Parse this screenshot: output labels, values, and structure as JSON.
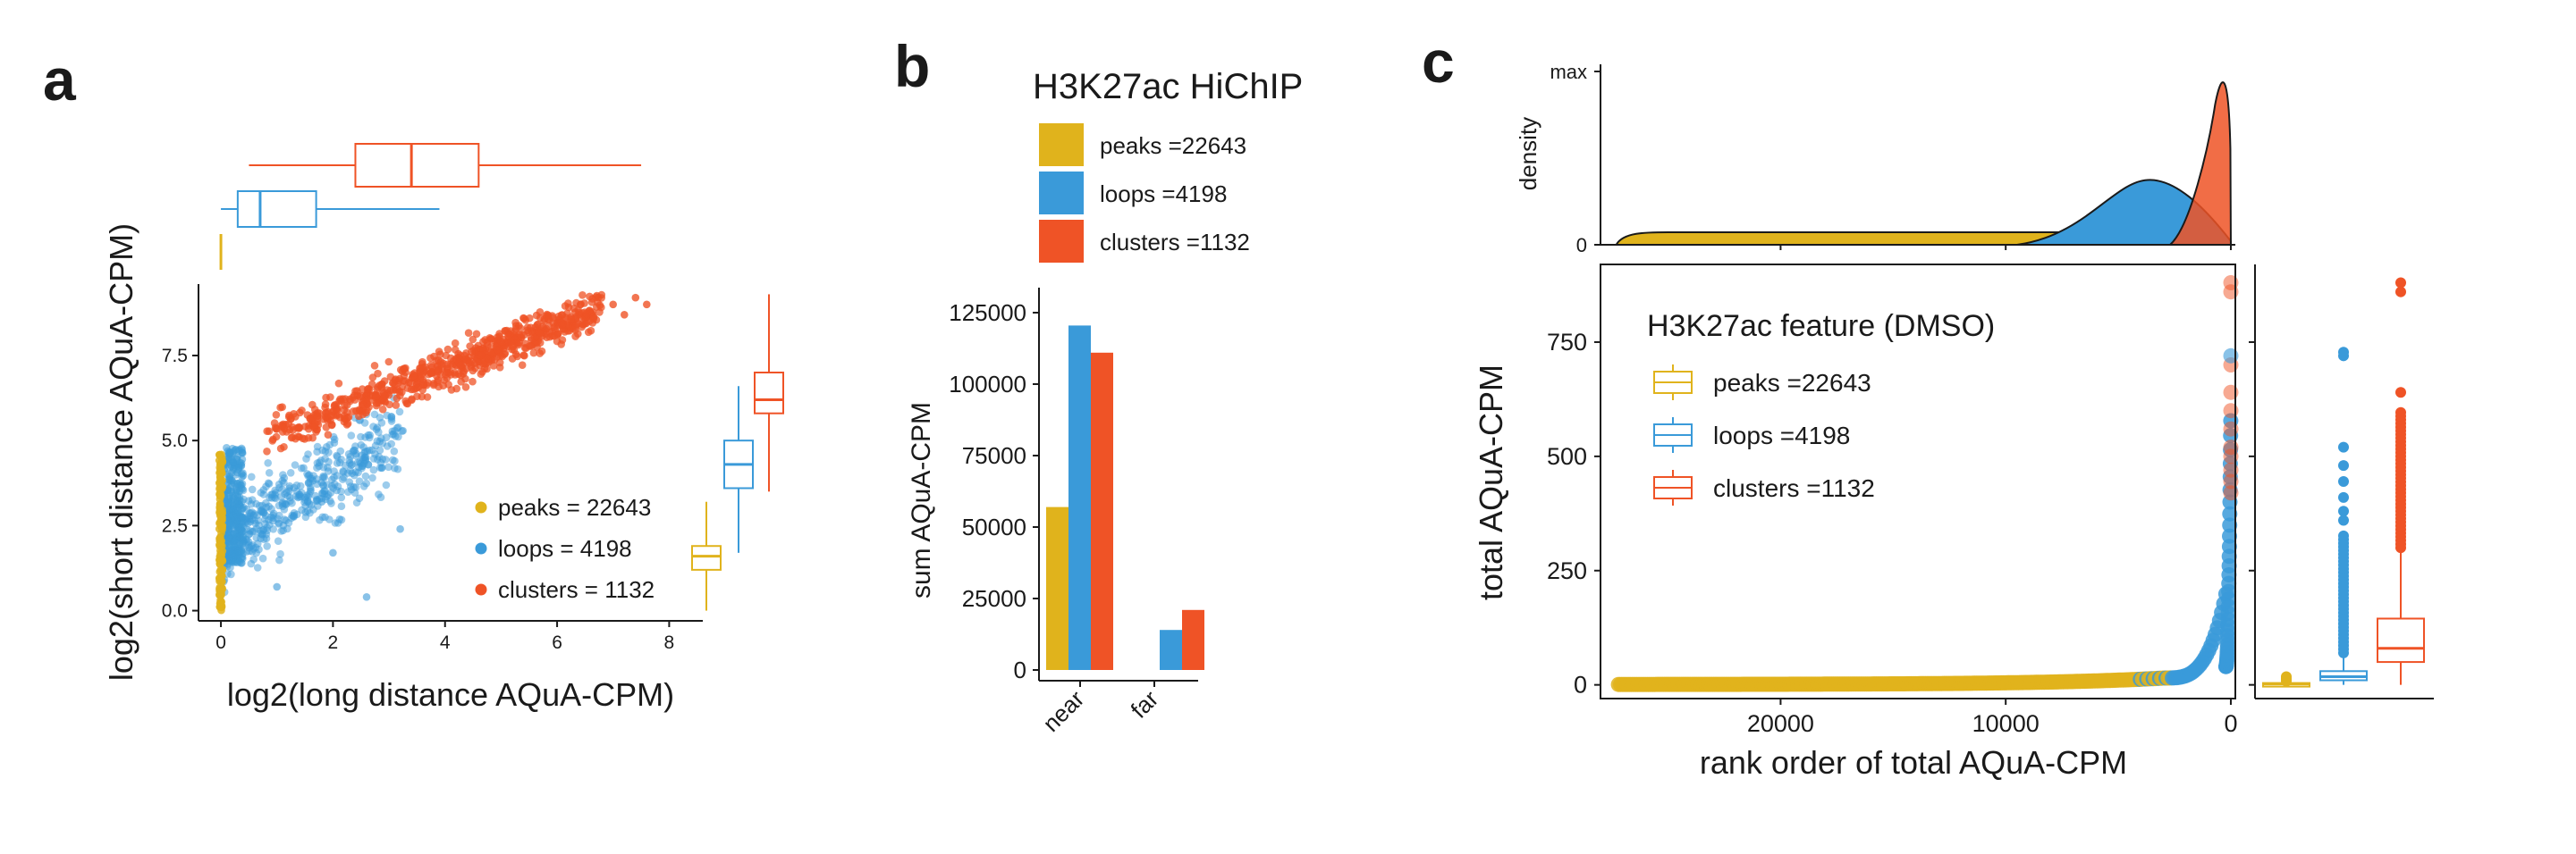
{
  "colors": {
    "peaks": "#e0b31c",
    "loops": "#3a9ad9",
    "clusters": "#ef5326",
    "axis": "#1a1a1a"
  },
  "chart_data": [
    {
      "panel": "a",
      "type": "scatter",
      "panel_label": "a",
      "xlabel": "log2(long distance AQuA-CPM)",
      "ylabel": "log2(short distance AQuA-CPM)",
      "xlim": [
        -0.4,
        8.6
      ],
      "ylim": [
        -0.3,
        9.6
      ],
      "x_ticks": [
        "0",
        "2",
        "4",
        "6",
        "8"
      ],
      "y_ticks": [
        "0.0",
        "2.5",
        "5.0",
        "7.5"
      ],
      "legend": [
        "peaks = 22643",
        "loops = 4198",
        "clusters = 1132"
      ],
      "marginal_boxplots_x": [
        {
          "series": "peaks",
          "min": 0,
          "q1": 0,
          "median": 0,
          "q3": 0,
          "max": 0
        },
        {
          "series": "loops",
          "min": 0,
          "q1": 0.3,
          "median": 0.7,
          "q3": 1.7,
          "max": 3.9
        },
        {
          "series": "clusters",
          "min": 0.5,
          "q1": 2.4,
          "median": 3.4,
          "q3": 4.6,
          "max": 7.5
        }
      ],
      "marginal_boxplots_y": [
        {
          "series": "peaks",
          "min": 0,
          "q1": 1.2,
          "median": 1.6,
          "q3": 1.9,
          "max": 3.2
        },
        {
          "series": "loops",
          "min": 1.7,
          "q1": 3.6,
          "median": 4.3,
          "q3": 5.0,
          "max": 6.6
        },
        {
          "series": "clusters",
          "min": 3.5,
          "q1": 5.8,
          "median": 6.2,
          "q3": 7.0,
          "max": 9.3
        }
      ]
    },
    {
      "panel": "b",
      "type": "bar",
      "panel_label": "b",
      "title": "H3K27ac HiChIP",
      "categories": [
        "near",
        "far"
      ],
      "series": [
        {
          "name": "peaks =22643",
          "key": "peaks",
          "values": [
            57000,
            0
          ]
        },
        {
          "name": "loops =4198",
          "key": "loops",
          "values": [
            120500,
            14000
          ]
        },
        {
          "name": "clusters =1132",
          "key": "clusters",
          "values": [
            111000,
            21000
          ]
        }
      ],
      "ylabel": "sum AQuA-CPM",
      "ylim": [
        0,
        130000
      ],
      "y_ticks": [
        "0",
        "25000",
        "50000",
        "75000",
        "100000",
        "125000"
      ]
    },
    {
      "panel": "c",
      "type": "scatter",
      "panel_label": "c",
      "title": "H3K27ac feature (DMSO)",
      "xlabel": "rank order of total AQuA-CPM",
      "ylabel": "total AQuA-CPM",
      "x_reversed": true,
      "xlim": [
        28000,
        -200
      ],
      "ylim": [
        -30,
        920
      ],
      "x_ticks": [
        "20000",
        "10000",
        "0"
      ],
      "y_ticks": [
        "0",
        "250",
        "500",
        "750"
      ],
      "density_ylabel": "density",
      "density_y_ticks": [
        "0",
        "max"
      ],
      "legend": [
        "peaks =22643",
        "loops =4198",
        "clusters =1132"
      ],
      "boxplots": [
        {
          "series": "peaks",
          "q1": 1,
          "median": 2,
          "q3": 4,
          "whisker_max": 8
        },
        {
          "series": "loops",
          "q1": 10,
          "median": 18,
          "q3": 30,
          "whisker_max": 60
        },
        {
          "series": "clusters",
          "q1": 50,
          "median": 80,
          "q3": 145,
          "whisker_max": 290
        }
      ]
    }
  ]
}
